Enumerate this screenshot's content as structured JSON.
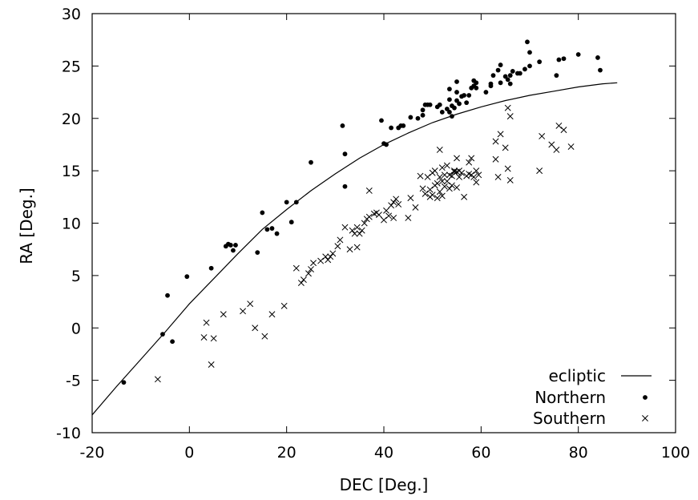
{
  "chart_data": {
    "type": "scatter",
    "xlabel": "DEC [Deg.]",
    "ylabel": "RA [Deg.]",
    "xlim": [
      -20,
      100
    ],
    "ylim": [
      -10,
      30
    ],
    "xticks": [
      -20,
      0,
      20,
      40,
      60,
      80,
      100
    ],
    "yticks": [
      -10,
      -5,
      0,
      5,
      10,
      15,
      20,
      25,
      30
    ],
    "xtick_labels": [
      "-20",
      "0",
      "20",
      "40",
      "60",
      "80",
      "100"
    ],
    "ytick_labels": [
      "-10",
      "-5",
      "0",
      "5",
      "10",
      "15",
      "20",
      "25",
      "30"
    ],
    "grid": false,
    "legend_position": "bottom-right",
    "series": [
      {
        "name": "ecliptic",
        "style": "line",
        "color": "#000000",
        "points": [
          [
            -20,
            -8.3
          ],
          [
            -15,
            -5.6
          ],
          [
            -10,
            -3.0
          ],
          [
            -5,
            -0.4
          ],
          [
            0,
            2.3
          ],
          [
            5,
            4.7
          ],
          [
            10,
            7.1
          ],
          [
            15,
            9.4
          ],
          [
            20,
            11.3
          ],
          [
            25,
            13.1
          ],
          [
            30,
            14.7
          ],
          [
            35,
            16.2
          ],
          [
            40,
            17.5
          ],
          [
            45,
            18.6
          ],
          [
            50,
            19.6
          ],
          [
            55,
            20.4
          ],
          [
            60,
            21.1
          ],
          [
            65,
            21.7
          ],
          [
            70,
            22.2
          ],
          [
            75,
            22.6
          ],
          [
            80,
            23.0
          ],
          [
            85,
            23.3
          ],
          [
            88,
            23.4
          ]
        ]
      },
      {
        "name": "Northern",
        "style": "dot",
        "color": "#000000",
        "points": [
          [
            -13.5,
            -5.2
          ],
          [
            -5.5,
            -0.6
          ],
          [
            -4.5,
            3.1
          ],
          [
            -3.5,
            -1.3
          ],
          [
            -0.5,
            4.9
          ],
          [
            4.5,
            5.7
          ],
          [
            7.5,
            7.8
          ],
          [
            8,
            8.0
          ],
          [
            8.5,
            7.9
          ],
          [
            9,
            7.4
          ],
          [
            9.5,
            7.9
          ],
          [
            14,
            7.2
          ],
          [
            15,
            11.0
          ],
          [
            16,
            9.4
          ],
          [
            17,
            9.5
          ],
          [
            18,
            9.0
          ],
          [
            20,
            12.0
          ],
          [
            21,
            10.1
          ],
          [
            22,
            12.0
          ],
          [
            25,
            15.8
          ],
          [
            31.5,
            19.3
          ],
          [
            32,
            16.6
          ],
          [
            32,
            13.5
          ],
          [
            39.5,
            19.8
          ],
          [
            40,
            17.6
          ],
          [
            40.5,
            17.5
          ],
          [
            41.5,
            19.1
          ],
          [
            43,
            19.1
          ],
          [
            43.5,
            19.3
          ],
          [
            44,
            19.3
          ],
          [
            45.5,
            20.1
          ],
          [
            47,
            20.0
          ],
          [
            48,
            20.3
          ],
          [
            48,
            20.8
          ],
          [
            48.5,
            21.3
          ],
          [
            49,
            21.3
          ],
          [
            49.5,
            21.3
          ],
          [
            51,
            21.1
          ],
          [
            51.5,
            21.3
          ],
          [
            52,
            20.6
          ],
          [
            53,
            20.9
          ],
          [
            53.5,
            20.6
          ],
          [
            53.5,
            21.8
          ],
          [
            53.5,
            22.8
          ],
          [
            54,
            20.2
          ],
          [
            54,
            21.2
          ],
          [
            54.5,
            21.0
          ],
          [
            55,
            21.7
          ],
          [
            55,
            22.5
          ],
          [
            55,
            23.5
          ],
          [
            55.5,
            21.4
          ],
          [
            56,
            22.1
          ],
          [
            56.5,
            22.2
          ],
          [
            57,
            21.5
          ],
          [
            57.5,
            22.2
          ],
          [
            58,
            22.9
          ],
          [
            58.5,
            23.1
          ],
          [
            58.5,
            23.6
          ],
          [
            59,
            23.4
          ],
          [
            59,
            22.9
          ],
          [
            61,
            22.5
          ],
          [
            62,
            23.1
          ],
          [
            62,
            23.3
          ],
          [
            62.5,
            24.1
          ],
          [
            63.5,
            24.6
          ],
          [
            64,
            25.1
          ],
          [
            64,
            23.4
          ],
          [
            65,
            24.0
          ],
          [
            65.5,
            23.7
          ],
          [
            66,
            23.3
          ],
          [
            66,
            24.1
          ],
          [
            66.5,
            24.5
          ],
          [
            67.5,
            24.3
          ],
          [
            68,
            24.3
          ],
          [
            69,
            24.7
          ],
          [
            69.5,
            27.3
          ],
          [
            70,
            26.3
          ],
          [
            70,
            25.0
          ],
          [
            72,
            25.4
          ],
          [
            75.5,
            24.1
          ],
          [
            76,
            25.6
          ],
          [
            77,
            25.7
          ],
          [
            80,
            26.1
          ],
          [
            84,
            25.8
          ],
          [
            84.5,
            24.6
          ]
        ]
      },
      {
        "name": "Southern",
        "style": "cross",
        "color": "#000000",
        "points": [
          [
            -6.5,
            -4.9
          ],
          [
            3,
            -0.9
          ],
          [
            3.5,
            0.5
          ],
          [
            4.5,
            -3.5
          ],
          [
            5,
            -1.0
          ],
          [
            7,
            1.3
          ],
          [
            11,
            1.6
          ],
          [
            12.5,
            2.3
          ],
          [
            13.5,
            0.0
          ],
          [
            15.5,
            -0.8
          ],
          [
            17,
            1.3
          ],
          [
            19.5,
            2.1
          ],
          [
            22,
            5.7
          ],
          [
            23,
            4.3
          ],
          [
            23.5,
            4.6
          ],
          [
            24.5,
            5.2
          ],
          [
            25,
            5.6
          ],
          [
            25.5,
            6.2
          ],
          [
            27,
            6.4
          ],
          [
            28,
            6.8
          ],
          [
            28.5,
            6.5
          ],
          [
            29,
            6.8
          ],
          [
            29.5,
            7.1
          ],
          [
            30.5,
            7.8
          ],
          [
            31,
            8.4
          ],
          [
            32,
            9.6
          ],
          [
            33,
            7.5
          ],
          [
            33.5,
            9.3
          ],
          [
            34,
            9.0
          ],
          [
            34.5,
            9.6
          ],
          [
            34.5,
            7.7
          ],
          [
            35,
            9.0
          ],
          [
            35.5,
            9.3
          ],
          [
            36,
            10.0
          ],
          [
            36.5,
            10.4
          ],
          [
            37,
            10.6
          ],
          [
            37,
            13.1
          ],
          [
            38,
            10.9
          ],
          [
            38.5,
            11.0
          ],
          [
            39,
            10.8
          ],
          [
            40,
            10.3
          ],
          [
            40.5,
            11.2
          ],
          [
            41,
            10.7
          ],
          [
            41.5,
            11.7
          ],
          [
            42,
            12.0
          ],
          [
            42,
            10.5
          ],
          [
            42.5,
            12.3
          ],
          [
            43,
            11.8
          ],
          [
            45,
            10.5
          ],
          [
            45.5,
            12.4
          ],
          [
            46.5,
            11.5
          ],
          [
            47.5,
            14.5
          ],
          [
            48,
            13.3
          ],
          [
            48.5,
            12.8
          ],
          [
            49,
            14.4
          ],
          [
            49.5,
            13.2
          ],
          [
            49.5,
            12.5
          ],
          [
            50,
            12.7
          ],
          [
            50,
            14.8
          ],
          [
            50.5,
            15.0
          ],
          [
            50.5,
            13.6
          ],
          [
            51,
            12.4
          ],
          [
            51,
            13.8
          ],
          [
            51.5,
            14.4
          ],
          [
            51.5,
            13.0
          ],
          [
            51.5,
            17.0
          ],
          [
            52,
            14.0
          ],
          [
            52,
            12.6
          ],
          [
            52,
            15.3
          ],
          [
            52.5,
            14.6
          ],
          [
            52.5,
            13.5
          ],
          [
            53,
            14.0
          ],
          [
            53,
            15.5
          ],
          [
            53.5,
            13.3
          ],
          [
            53.5,
            14.6
          ],
          [
            54,
            14.5
          ],
          [
            54,
            13.6
          ],
          [
            54.5,
            14.9
          ],
          [
            54.5,
            15.0
          ],
          [
            55,
            14.9
          ],
          [
            55,
            13.4
          ],
          [
            55,
            16.2
          ],
          [
            55.5,
            14.4
          ],
          [
            55.5,
            15.0
          ],
          [
            56,
            14.8
          ],
          [
            56.5,
            12.5
          ],
          [
            57,
            14.5
          ],
          [
            57.5,
            15.8
          ],
          [
            57.5,
            14.7
          ],
          [
            58,
            16.2
          ],
          [
            58,
            14.6
          ],
          [
            58.5,
            14.4
          ],
          [
            59,
            15.0
          ],
          [
            59,
            13.9
          ],
          [
            59.5,
            14.6
          ],
          [
            63,
            16.1
          ],
          [
            63,
            17.8
          ],
          [
            63.5,
            14.4
          ],
          [
            64,
            18.5
          ],
          [
            65,
            17.2
          ],
          [
            65.5,
            15.2
          ],
          [
            65.5,
            21.0
          ],
          [
            66,
            20.2
          ],
          [
            66,
            14.1
          ],
          [
            72,
            15.0
          ],
          [
            72.5,
            18.3
          ],
          [
            74.5,
            17.5
          ],
          [
            75.5,
            17.0
          ],
          [
            76,
            19.3
          ],
          [
            77,
            18.9
          ],
          [
            78.5,
            17.3
          ]
        ]
      }
    ]
  }
}
